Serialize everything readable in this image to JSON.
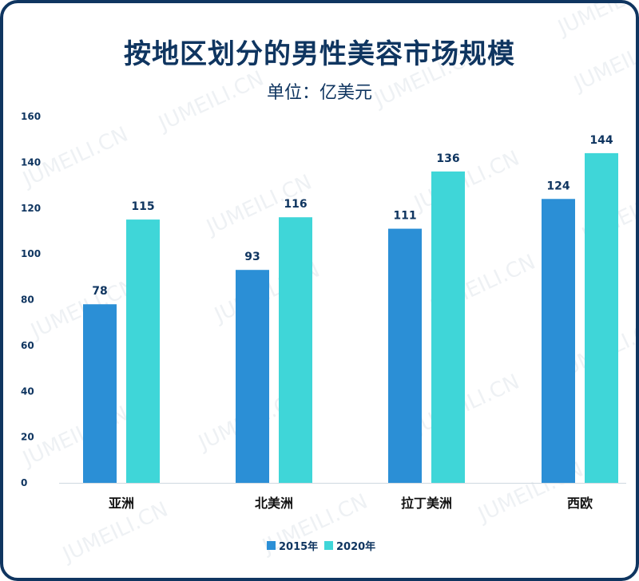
{
  "chart_data": {
    "type": "bar",
    "title": "按地区划分的男性美容市场规模",
    "subtitle": "单位：亿美元",
    "categories": [
      "亚洲",
      "北美洲",
      "拉丁美洲",
      "西欧"
    ],
    "series": [
      {
        "name": "2015年",
        "color": "#2b8fd6",
        "values": [
          78,
          93,
          111,
          124
        ]
      },
      {
        "name": "2020年",
        "color": "#3fd6d8",
        "values": [
          115,
          116,
          136,
          144
        ]
      }
    ],
    "ylim": [
      0,
      160
    ],
    "yticks": [
      0,
      20,
      40,
      60,
      80,
      100,
      120,
      140,
      160
    ],
    "xlabel": "",
    "ylabel": "",
    "grid": false,
    "legend": "bottom-center"
  },
  "watermark": "JUMEILI.CN"
}
